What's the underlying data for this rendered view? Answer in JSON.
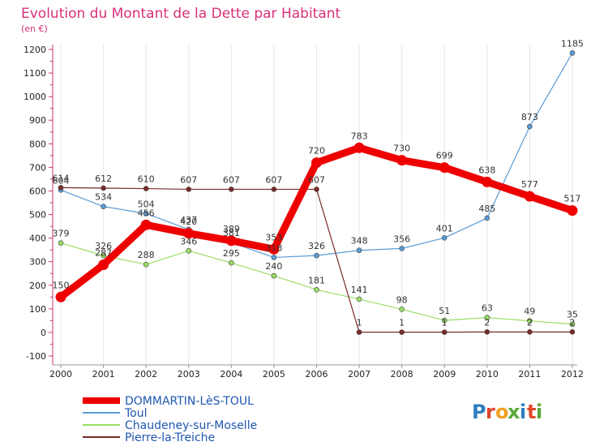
{
  "title": "Evolution du Montant de la Dette par Habitant",
  "subtitle": "(en €)",
  "logo_text": "Proxiti",
  "chart_data": {
    "type": "line",
    "title": "Evolution du Montant de la Dette par Habitant",
    "subtitle": "(en €)",
    "xlabel": "",
    "ylabel": "",
    "x": [
      "2000",
      "2001",
      "2002",
      "2003",
      "2004",
      "2005",
      "2006",
      "2007",
      "2008",
      "2009",
      "2010",
      "2011",
      "2012"
    ],
    "ylim": [
      -100,
      1250
    ],
    "yticks": [
      -100,
      0,
      100,
      200,
      300,
      400,
      500,
      600,
      700,
      800,
      900,
      1000,
      1100,
      1200
    ],
    "grid": "vertical",
    "legend_position": "bottom",
    "series": [
      {
        "name": "DOMMARTIN-LèS-TOUL",
        "color": "#ee0000",
        "values": [
          150,
          287,
          456,
          420,
          389,
          353,
          720,
          783,
          730,
          699,
          638,
          577,
          517
        ]
      },
      {
        "name": "Toul",
        "color": "#5b9bd5",
        "values": [
          604,
          534,
          504,
          437,
          381,
          318,
          326,
          348,
          356,
          401,
          485,
          873,
          1185
        ]
      },
      {
        "name": "Chaudeney-sur-Moselle",
        "color": "#99dd66",
        "values": [
          379,
          326,
          288,
          346,
          295,
          240,
          181,
          141,
          98,
          51,
          63,
          49,
          35
        ]
      },
      {
        "name": "Pierre-la-Treiche",
        "color": "#7a2a2a",
        "values": [
          614,
          612,
          610,
          607,
          607,
          607,
          607,
          1,
          1,
          1,
          2,
          2,
          2
        ]
      }
    ]
  }
}
